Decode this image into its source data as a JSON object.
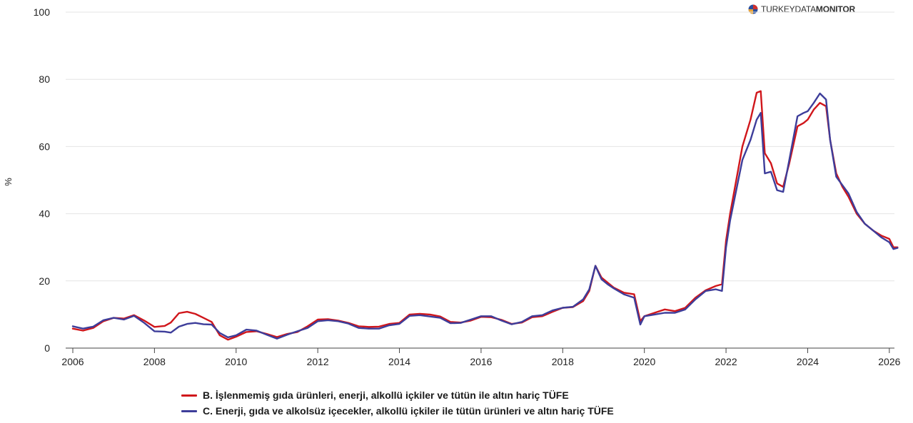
{
  "brand": {
    "name_light": "TURKEYDATA",
    "name_bold": "MONITOR",
    "logo_colors": [
      "#2b4f9e",
      "#d0312d"
    ]
  },
  "chart_data": {
    "type": "line",
    "title": "",
    "xlabel": "",
    "ylabel": "%",
    "xlim": [
      2006,
      2026.3
    ],
    "ylim": [
      0,
      100
    ],
    "x_ticks": [
      2006,
      2008,
      2010,
      2012,
      2014,
      2016,
      2018,
      2020,
      2022,
      2024,
      2026
    ],
    "y_ticks": [
      0,
      20,
      40,
      60,
      80,
      100
    ],
    "grid": "horizontal",
    "legend_position": "bottom",
    "series": [
      {
        "name": "B. İşlenmemiş gıda ürünleri, enerji, alkollü içkiler ve tütün ile altın hariç TÜFE",
        "color": "#d0161b",
        "points": [
          [
            2006.0,
            5.8
          ],
          [
            2006.25,
            5.2
          ],
          [
            2006.5,
            6.0
          ],
          [
            2006.75,
            8.0
          ],
          [
            2007.0,
            9.0
          ],
          [
            2007.25,
            8.8
          ],
          [
            2007.5,
            9.8
          ],
          [
            2007.75,
            8.2
          ],
          [
            2008.0,
            6.3
          ],
          [
            2008.25,
            6.6
          ],
          [
            2008.4,
            7.6
          ],
          [
            2008.6,
            10.4
          ],
          [
            2008.8,
            10.8
          ],
          [
            2009.0,
            10.2
          ],
          [
            2009.2,
            9.0
          ],
          [
            2009.4,
            7.8
          ],
          [
            2009.6,
            3.8
          ],
          [
            2009.8,
            2.5
          ],
          [
            2010.0,
            3.4
          ],
          [
            2010.25,
            4.8
          ],
          [
            2010.5,
            5.0
          ],
          [
            2010.75,
            4.2
          ],
          [
            2011.0,
            3.3
          ],
          [
            2011.25,
            4.2
          ],
          [
            2011.5,
            4.8
          ],
          [
            2011.75,
            6.5
          ],
          [
            2012.0,
            8.5
          ],
          [
            2012.25,
            8.6
          ],
          [
            2012.5,
            8.2
          ],
          [
            2012.75,
            7.5
          ],
          [
            2013.0,
            6.5
          ],
          [
            2013.25,
            6.3
          ],
          [
            2013.5,
            6.4
          ],
          [
            2013.75,
            7.2
          ],
          [
            2014.0,
            7.5
          ],
          [
            2014.25,
            10.0
          ],
          [
            2014.5,
            10.2
          ],
          [
            2014.75,
            10.0
          ],
          [
            2015.0,
            9.4
          ],
          [
            2015.25,
            7.8
          ],
          [
            2015.5,
            7.6
          ],
          [
            2015.75,
            8.2
          ],
          [
            2016.0,
            9.3
          ],
          [
            2016.25,
            9.2
          ],
          [
            2016.5,
            8.4
          ],
          [
            2016.75,
            7.2
          ],
          [
            2017.0,
            7.6
          ],
          [
            2017.25,
            9.2
          ],
          [
            2017.5,
            9.5
          ],
          [
            2017.75,
            10.8
          ],
          [
            2018.0,
            12.0
          ],
          [
            2018.25,
            12.2
          ],
          [
            2018.5,
            14.0
          ],
          [
            2018.65,
            17.0
          ],
          [
            2018.8,
            24.5
          ],
          [
            2018.95,
            21.0
          ],
          [
            2019.1,
            19.5
          ],
          [
            2019.25,
            18.0
          ],
          [
            2019.5,
            16.5
          ],
          [
            2019.75,
            16.0
          ],
          [
            2019.9,
            8.0
          ],
          [
            2020.0,
            9.5
          ],
          [
            2020.25,
            10.5
          ],
          [
            2020.5,
            11.5
          ],
          [
            2020.75,
            11.0
          ],
          [
            2021.0,
            12.0
          ],
          [
            2021.25,
            15.0
          ],
          [
            2021.5,
            17.2
          ],
          [
            2021.75,
            18.5
          ],
          [
            2021.9,
            19.0
          ],
          [
            2022.0,
            32.0
          ],
          [
            2022.1,
            40.0
          ],
          [
            2022.25,
            50.0
          ],
          [
            2022.4,
            60.0
          ],
          [
            2022.6,
            68.0
          ],
          [
            2022.75,
            76.0
          ],
          [
            2022.85,
            76.5
          ],
          [
            2022.95,
            58.0
          ],
          [
            2023.1,
            55.0
          ],
          [
            2023.25,
            49.0
          ],
          [
            2023.4,
            48.0
          ],
          [
            2023.55,
            55.0
          ],
          [
            2023.75,
            66.0
          ],
          [
            2023.9,
            67.0
          ],
          [
            2024.0,
            68.0
          ],
          [
            2024.15,
            71.0
          ],
          [
            2024.3,
            73.0
          ],
          [
            2024.45,
            72.0
          ],
          [
            2024.55,
            62.0
          ],
          [
            2024.7,
            52.0
          ],
          [
            2024.85,
            48.0
          ],
          [
            2025.0,
            45.0
          ],
          [
            2025.2,
            40.0
          ],
          [
            2025.4,
            37.0
          ],
          [
            2025.6,
            35.0
          ],
          [
            2025.8,
            33.5
          ],
          [
            2026.0,
            32.5
          ],
          [
            2026.1,
            30.0
          ],
          [
            2026.2,
            30.0
          ]
        ]
      },
      {
        "name": "C. Enerji, gıda ve alkolsüz içecekler, alkollü içkiler ile tütün ürünleri ve altın hariç TÜFE",
        "color": "#3d3d9a",
        "points": [
          [
            2006.0,
            6.5
          ],
          [
            2006.25,
            5.8
          ],
          [
            2006.5,
            6.4
          ],
          [
            2006.75,
            8.3
          ],
          [
            2007.0,
            9.0
          ],
          [
            2007.25,
            8.5
          ],
          [
            2007.5,
            9.6
          ],
          [
            2007.75,
            7.5
          ],
          [
            2008.0,
            5.0
          ],
          [
            2008.25,
            4.9
          ],
          [
            2008.4,
            4.6
          ],
          [
            2008.6,
            6.4
          ],
          [
            2008.8,
            7.2
          ],
          [
            2009.0,
            7.5
          ],
          [
            2009.2,
            7.1
          ],
          [
            2009.4,
            7.0
          ],
          [
            2009.6,
            4.5
          ],
          [
            2009.8,
            3.2
          ],
          [
            2010.0,
            3.8
          ],
          [
            2010.25,
            5.5
          ],
          [
            2010.5,
            5.2
          ],
          [
            2010.75,
            4.0
          ],
          [
            2011.0,
            2.8
          ],
          [
            2011.25,
            4.0
          ],
          [
            2011.5,
            5.0
          ],
          [
            2011.75,
            6.0
          ],
          [
            2012.0,
            8.0
          ],
          [
            2012.25,
            8.3
          ],
          [
            2012.5,
            8.0
          ],
          [
            2012.75,
            7.3
          ],
          [
            2013.0,
            6.0
          ],
          [
            2013.25,
            5.8
          ],
          [
            2013.5,
            5.8
          ],
          [
            2013.75,
            6.8
          ],
          [
            2014.0,
            7.2
          ],
          [
            2014.25,
            9.6
          ],
          [
            2014.5,
            9.8
          ],
          [
            2014.75,
            9.4
          ],
          [
            2015.0,
            9.0
          ],
          [
            2015.25,
            7.4
          ],
          [
            2015.5,
            7.5
          ],
          [
            2015.75,
            8.5
          ],
          [
            2016.0,
            9.5
          ],
          [
            2016.25,
            9.5
          ],
          [
            2016.5,
            8.2
          ],
          [
            2016.75,
            7.1
          ],
          [
            2017.0,
            7.8
          ],
          [
            2017.25,
            9.5
          ],
          [
            2017.5,
            9.8
          ],
          [
            2017.75,
            11.2
          ],
          [
            2018.0,
            12.0
          ],
          [
            2018.25,
            12.3
          ],
          [
            2018.5,
            14.5
          ],
          [
            2018.65,
            17.5
          ],
          [
            2018.8,
            24.5
          ],
          [
            2018.95,
            20.5
          ],
          [
            2019.1,
            19.0
          ],
          [
            2019.25,
            17.8
          ],
          [
            2019.5,
            16.0
          ],
          [
            2019.75,
            15.0
          ],
          [
            2019.9,
            7.0
          ],
          [
            2020.0,
            9.5
          ],
          [
            2020.25,
            10.0
          ],
          [
            2020.5,
            10.5
          ],
          [
            2020.75,
            10.5
          ],
          [
            2021.0,
            11.5
          ],
          [
            2021.25,
            14.5
          ],
          [
            2021.5,
            17.0
          ],
          [
            2021.75,
            17.5
          ],
          [
            2021.9,
            17.0
          ],
          [
            2022.0,
            30.0
          ],
          [
            2022.1,
            38.0
          ],
          [
            2022.25,
            47.0
          ],
          [
            2022.4,
            56.0
          ],
          [
            2022.6,
            62.0
          ],
          [
            2022.75,
            68.0
          ],
          [
            2022.85,
            70.0
          ],
          [
            2022.95,
            52.0
          ],
          [
            2023.1,
            52.5
          ],
          [
            2023.25,
            47.0
          ],
          [
            2023.4,
            46.5
          ],
          [
            2023.55,
            56.0
          ],
          [
            2023.75,
            69.0
          ],
          [
            2023.9,
            70.0
          ],
          [
            2024.0,
            70.5
          ],
          [
            2024.15,
            73.0
          ],
          [
            2024.3,
            75.8
          ],
          [
            2024.45,
            74.0
          ],
          [
            2024.55,
            62.0
          ],
          [
            2024.7,
            51.0
          ],
          [
            2024.85,
            48.5
          ],
          [
            2025.0,
            46.0
          ],
          [
            2025.2,
            40.5
          ],
          [
            2025.4,
            37.0
          ],
          [
            2025.6,
            35.0
          ],
          [
            2025.8,
            33.0
          ],
          [
            2026.0,
            31.5
          ],
          [
            2026.1,
            29.5
          ],
          [
            2026.2,
            29.8
          ]
        ]
      }
    ]
  }
}
